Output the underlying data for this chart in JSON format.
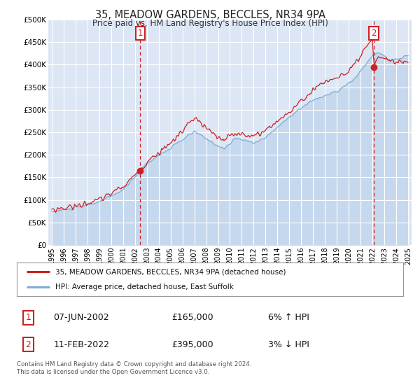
{
  "title": "35, MEADOW GARDENS, BECCLES, NR34 9PA",
  "subtitle": "Price paid vs. HM Land Registry's House Price Index (HPI)",
  "legend_line1": "35, MEADOW GARDENS, BECCLES, NR34 9PA (detached house)",
  "legend_line2": "HPI: Average price, detached house, East Suffolk",
  "marker1_date": "07-JUN-2002",
  "marker1_price": "£165,000",
  "marker1_hpi": "6% ↑ HPI",
  "marker1_x": 2002.44,
  "marker1_y": 165000,
  "marker2_date": "11-FEB-2022",
  "marker2_price": "£395,000",
  "marker2_hpi": "3% ↓ HPI",
  "marker2_x": 2022.12,
  "marker2_y": 395000,
  "ylim": [
    0,
    500000
  ],
  "xlim_start": 1994.7,
  "xlim_end": 2025.3,
  "yticks": [
    0,
    50000,
    100000,
    150000,
    200000,
    250000,
    300000,
    350000,
    400000,
    450000,
    500000
  ],
  "ytick_labels": [
    "£0",
    "£50K",
    "£100K",
    "£150K",
    "£200K",
    "£250K",
    "£300K",
    "£350K",
    "£400K",
    "£450K",
    "£500K"
  ],
  "xticks": [
    1995,
    1996,
    1997,
    1998,
    1999,
    2000,
    2001,
    2002,
    2003,
    2004,
    2005,
    2006,
    2007,
    2008,
    2009,
    2010,
    2011,
    2012,
    2013,
    2014,
    2015,
    2016,
    2017,
    2018,
    2019,
    2020,
    2021,
    2022,
    2023,
    2024,
    2025
  ],
  "bg_color": "#dce6f5",
  "grid_color": "#ffffff",
  "hpi_color": "#7bafd4",
  "hpi_fill_color": "#b8d0e8",
  "price_color": "#cc2222",
  "marker_box_color": "#cc2222",
  "footer_text": "Contains HM Land Registry data © Crown copyright and database right 2024.\nThis data is licensed under the Open Government Licence v3.0."
}
